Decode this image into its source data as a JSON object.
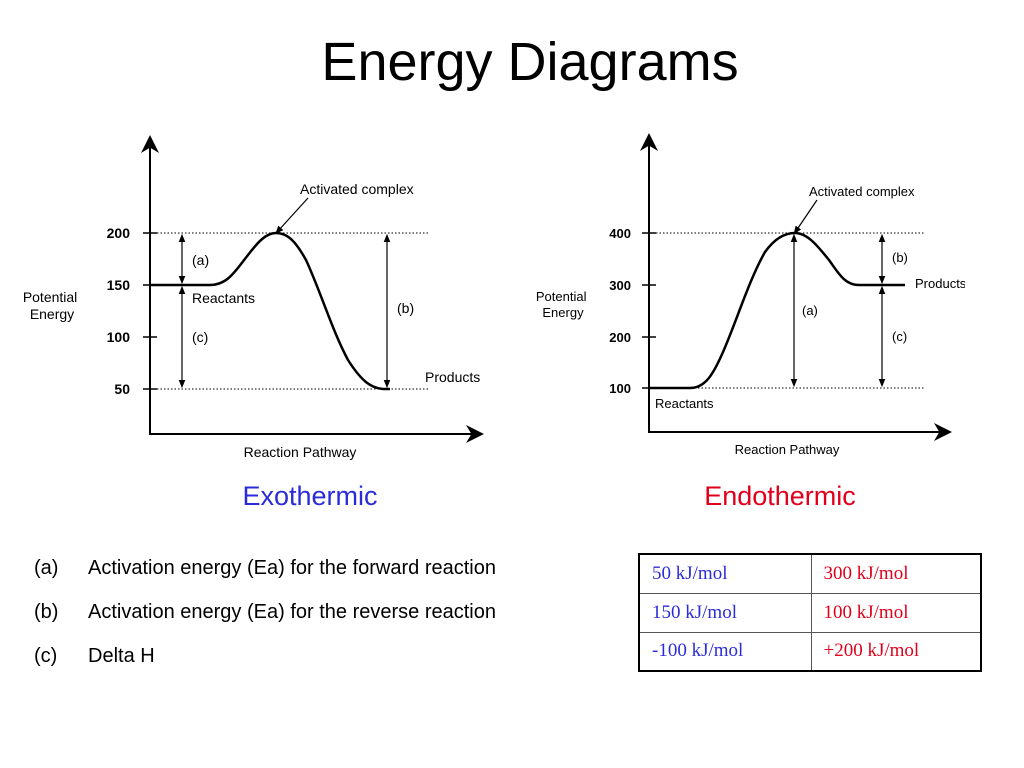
{
  "title": "Energy Diagrams",
  "colors": {
    "exo": "#2b2bd9",
    "endo": "#e0001c"
  },
  "diagrams": {
    "exo": {
      "caption": "Exothermic",
      "ylabel": "Potential\nEnergy",
      "xlabel": "Reaction Pathway",
      "yticks": [
        "200",
        "150",
        "100",
        "50"
      ],
      "activated_label": "Activated complex",
      "reactants_label": "Reactants",
      "products_label": "Products",
      "arrow_a": "(a)",
      "arrow_b": "(b)",
      "arrow_c": "(c)",
      "reactants_energy": 150,
      "peak_energy": 200,
      "products_energy": 50
    },
    "endo": {
      "caption": "Endothermic",
      "ylabel": "Potential\nEnergy",
      "xlabel": "Reaction Pathway",
      "yticks": [
        "400",
        "300",
        "200",
        "100"
      ],
      "activated_label": "Activated complex",
      "reactants_label": "Reactants",
      "products_label": "Products",
      "arrow_a": "(a)",
      "arrow_b": "(b)",
      "arrow_c": "(c)",
      "reactants_energy": 100,
      "peak_energy": 400,
      "products_energy": 300
    }
  },
  "legend": [
    {
      "letter": "(a)",
      "text": "Activation energy (Ea) for the forward reaction"
    },
    {
      "letter": "(b)",
      "text": "Activation energy (Ea) for the reverse reaction"
    },
    {
      "letter": "(c)",
      "text": "Delta H"
    }
  ],
  "answers": [
    {
      "exo": "50 kJ/mol",
      "endo": "300 kJ/mol"
    },
    {
      "exo": "150 kJ/mol",
      "endo": "100 kJ/mol"
    },
    {
      "exo": "-100 kJ/mol",
      "endo": "+200 kJ/mol"
    }
  ]
}
